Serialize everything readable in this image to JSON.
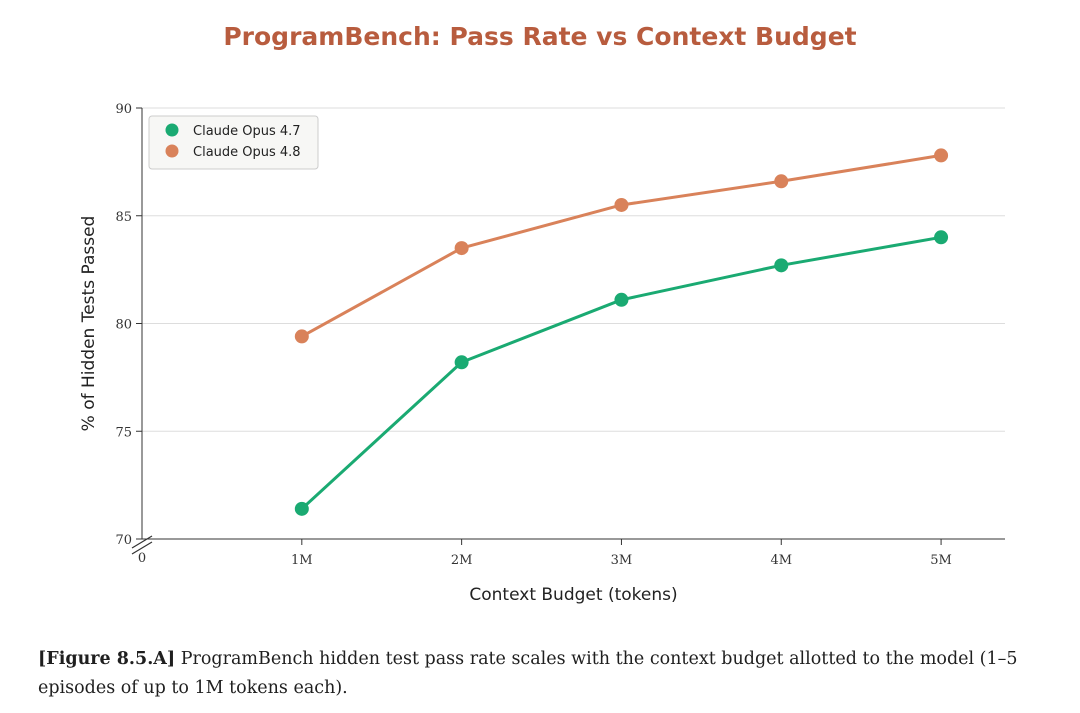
{
  "chart_data": {
    "type": "line",
    "title": "ProgramBench: Pass Rate vs Context Budget",
    "xlabel": "Context Budget (tokens)",
    "ylabel": "% of Hidden Tests Passed",
    "categories": [
      "1M",
      "2M",
      "3M",
      "4M",
      "5M"
    ],
    "x_values": [
      1,
      2,
      3,
      4,
      5
    ],
    "xlim": [
      0,
      5.4
    ],
    "x_origin_tick": "0",
    "ylim": [
      70,
      90
    ],
    "yticks": [
      70,
      75,
      80,
      85,
      90
    ],
    "grid": "y",
    "legend_position": "top-left",
    "series": [
      {
        "name": "Claude Opus 4.7",
        "color": "#1aaa72",
        "values": [
          71.4,
          78.2,
          81.1,
          82.7,
          84.0
        ]
      },
      {
        "name": "Claude Opus 4.8",
        "color": "#d9825a",
        "values": [
          79.4,
          83.5,
          85.5,
          86.6,
          87.8
        ]
      }
    ]
  },
  "caption": {
    "label": "[Figure 8.5.A]",
    "text": " ProgramBench hidden test pass rate scales with the context budget allotted to the model (1–5 episodes of up to 1M tokens each)."
  }
}
